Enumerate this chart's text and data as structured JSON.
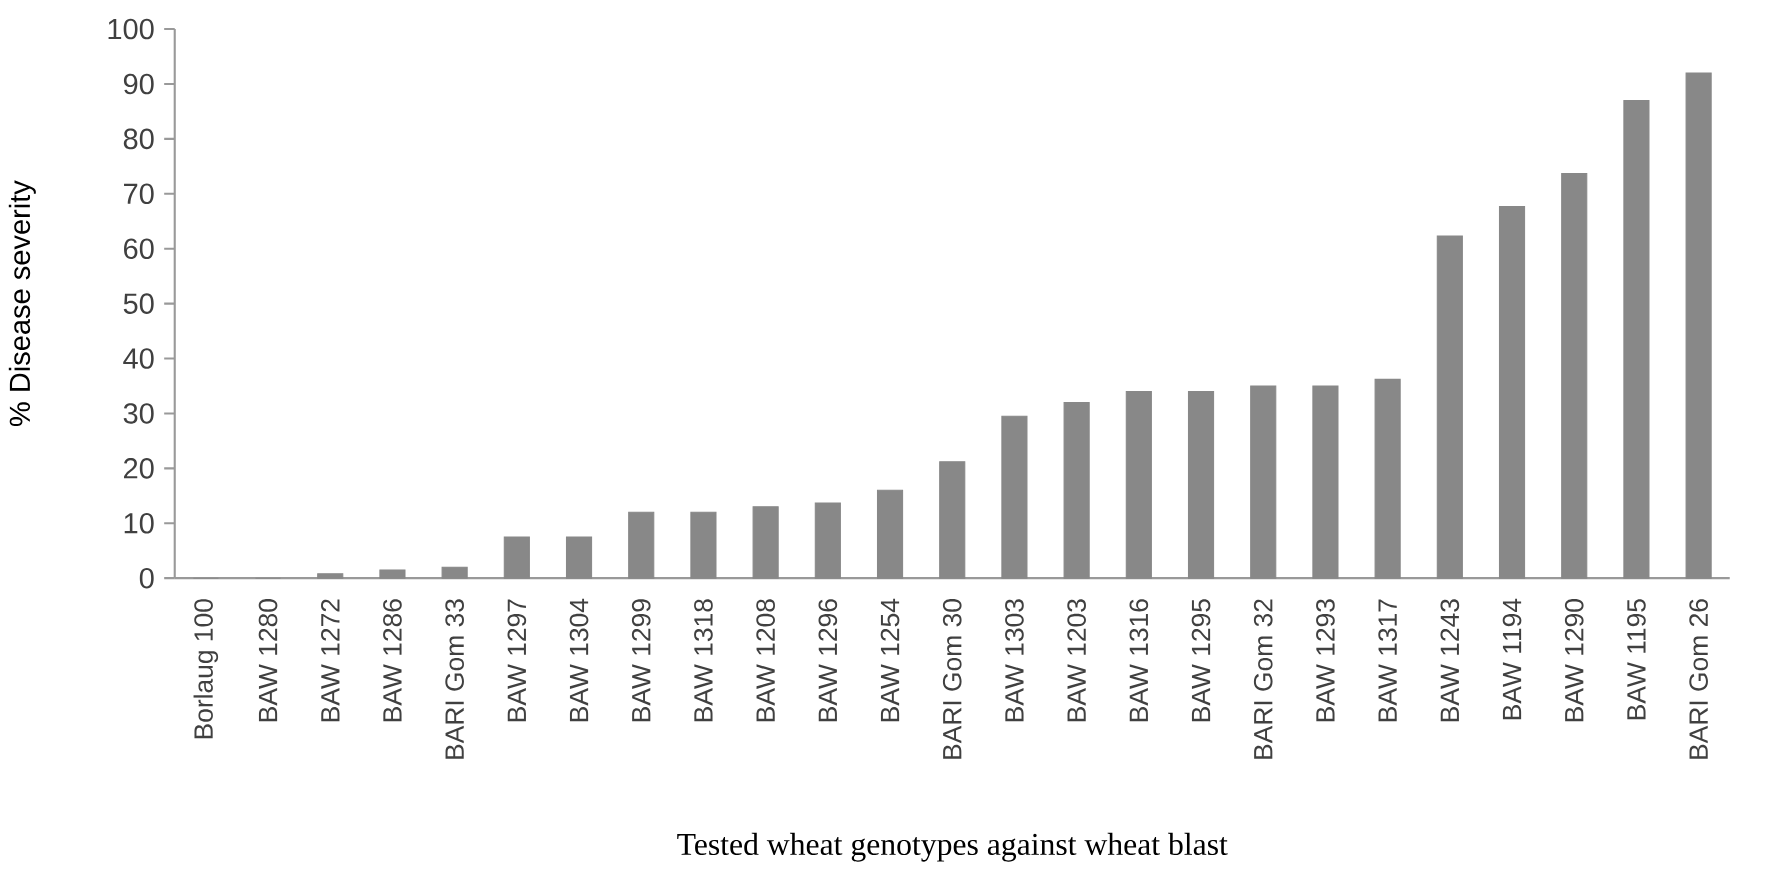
{
  "chart_data": {
    "type": "bar",
    "xlabel": "Tested wheat genotypes against wheat blast",
    "ylabel": "% Disease severity",
    "categories": [
      "Borlaug 100",
      "BAW 1280",
      "BAW 1272",
      "BAW 1286",
      "BARI Gom 33",
      "BAW 1297",
      "BAW 1304",
      "BAW 1299",
      "BAW 1318",
      "BAW 1208",
      "BAW 1296",
      "BAW 1254",
      "BARI Gom 30",
      "BAW 1303",
      "BAW 1203",
      "BAW 1316",
      "BAW 1295",
      "BARI Gom 32",
      "BAW 1293",
      "BAW 1317",
      "BAW 1243",
      "BAW 1194",
      "BAW 1290",
      "BAW 1195",
      "BARI Gom 26"
    ],
    "values": [
      0,
      0,
      0.8,
      1.5,
      2,
      7.5,
      7.5,
      12,
      12,
      13,
      13.7,
      16,
      21.2,
      29.5,
      32,
      34,
      34,
      35,
      35,
      36.2,
      62.3,
      67.7,
      73.7,
      87,
      92
    ],
    "color": "#888888",
    "ylim": [
      0,
      100
    ],
    "yticks": [
      0,
      10,
      20,
      30,
      40,
      50,
      60,
      70,
      80,
      90,
      100
    ]
  }
}
